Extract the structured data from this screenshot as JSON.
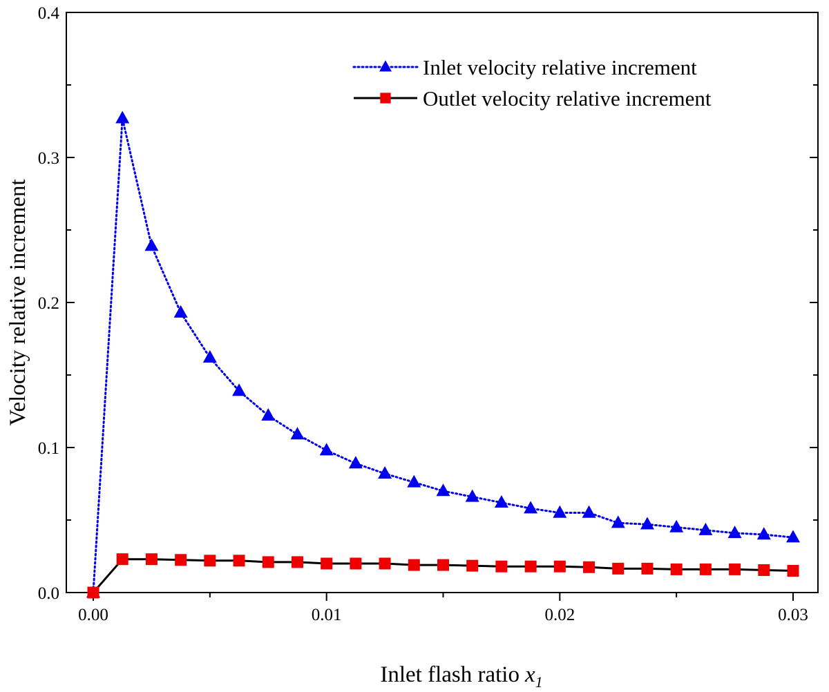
{
  "chart_data": {
    "type": "line",
    "xlabel": "Inlet flash ratio",
    "xlabel_var": "x",
    "xlabel_sub": "1",
    "ylabel": "Velocity relative increment",
    "xlim": [
      0,
      0.03
    ],
    "ylim": [
      0,
      0.4
    ],
    "xticks": [
      "0.00",
      "0.01",
      "0.02",
      "0.03"
    ],
    "yticks": [
      "0.0",
      "0.1",
      "0.2",
      "0.3",
      "0.4"
    ],
    "grid": false,
    "legend_position": "top-right",
    "series": [
      {
        "name": "Inlet velocity relative increment",
        "color": "#0000ee",
        "line_style": "dotted",
        "marker": "triangle",
        "x": [
          0,
          0.00125,
          0.0025,
          0.00375,
          0.005,
          0.00625,
          0.0075,
          0.00875,
          0.01,
          0.01125,
          0.0125,
          0.01375,
          0.015,
          0.01625,
          0.0175,
          0.01875,
          0.02,
          0.02125,
          0.0225,
          0.02375,
          0.025,
          0.02625,
          0.0275,
          0.02875,
          0.03
        ],
        "y": [
          0,
          0.327,
          0.239,
          0.193,
          0.162,
          0.139,
          0.122,
          0.109,
          0.098,
          0.089,
          0.082,
          0.076,
          0.07,
          0.066,
          0.062,
          0.058,
          0.055,
          0.055,
          0.048,
          0.047,
          0.045,
          0.043,
          0.041,
          0.04,
          0.038
        ]
      },
      {
        "name": "Outlet velocity relative increment",
        "color": "#000000",
        "marker_color": "#ee0000",
        "line_style": "solid",
        "marker": "square",
        "x": [
          0,
          0.00125,
          0.0025,
          0.00375,
          0.005,
          0.00625,
          0.0075,
          0.00875,
          0.01,
          0.01125,
          0.0125,
          0.01375,
          0.015,
          0.01625,
          0.0175,
          0.01875,
          0.02,
          0.02125,
          0.0225,
          0.02375,
          0.025,
          0.02625,
          0.0275,
          0.02875,
          0.03
        ],
        "y": [
          0,
          0.023,
          0.023,
          0.0225,
          0.022,
          0.022,
          0.021,
          0.021,
          0.02,
          0.02,
          0.02,
          0.019,
          0.019,
          0.0185,
          0.018,
          0.018,
          0.018,
          0.0175,
          0.0165,
          0.0165,
          0.016,
          0.016,
          0.016,
          0.0155,
          0.015
        ]
      }
    ]
  }
}
